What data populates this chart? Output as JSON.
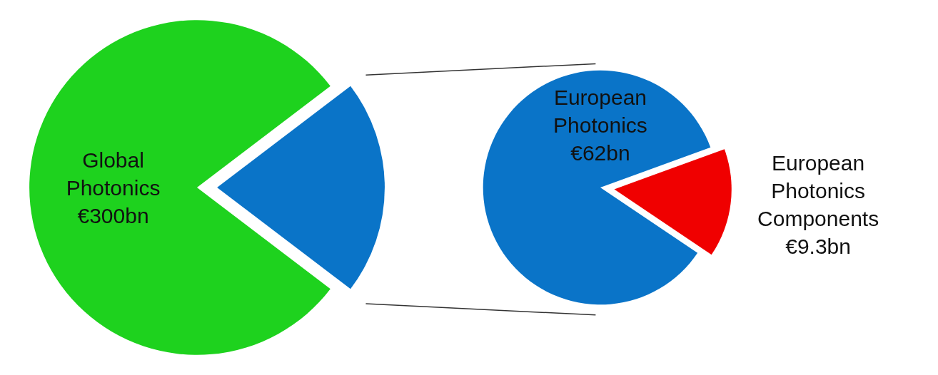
{
  "chart_data": [
    {
      "type": "pie",
      "categories": [
        "Global Photonics €300bn",
        null
      ],
      "values": [
        79.3,
        20.7
      ],
      "colors": [
        "#1ed21e",
        "#0a74c8"
      ],
      "legend": false
    },
    {
      "type": "pie",
      "categories": [
        "European Photonics €62bn",
        "European Photonics Components €9.3bn"
      ],
      "values": [
        85,
        15
      ],
      "colors": [
        "#0a74c8",
        "#f00000"
      ],
      "legend": false
    }
  ]
}
